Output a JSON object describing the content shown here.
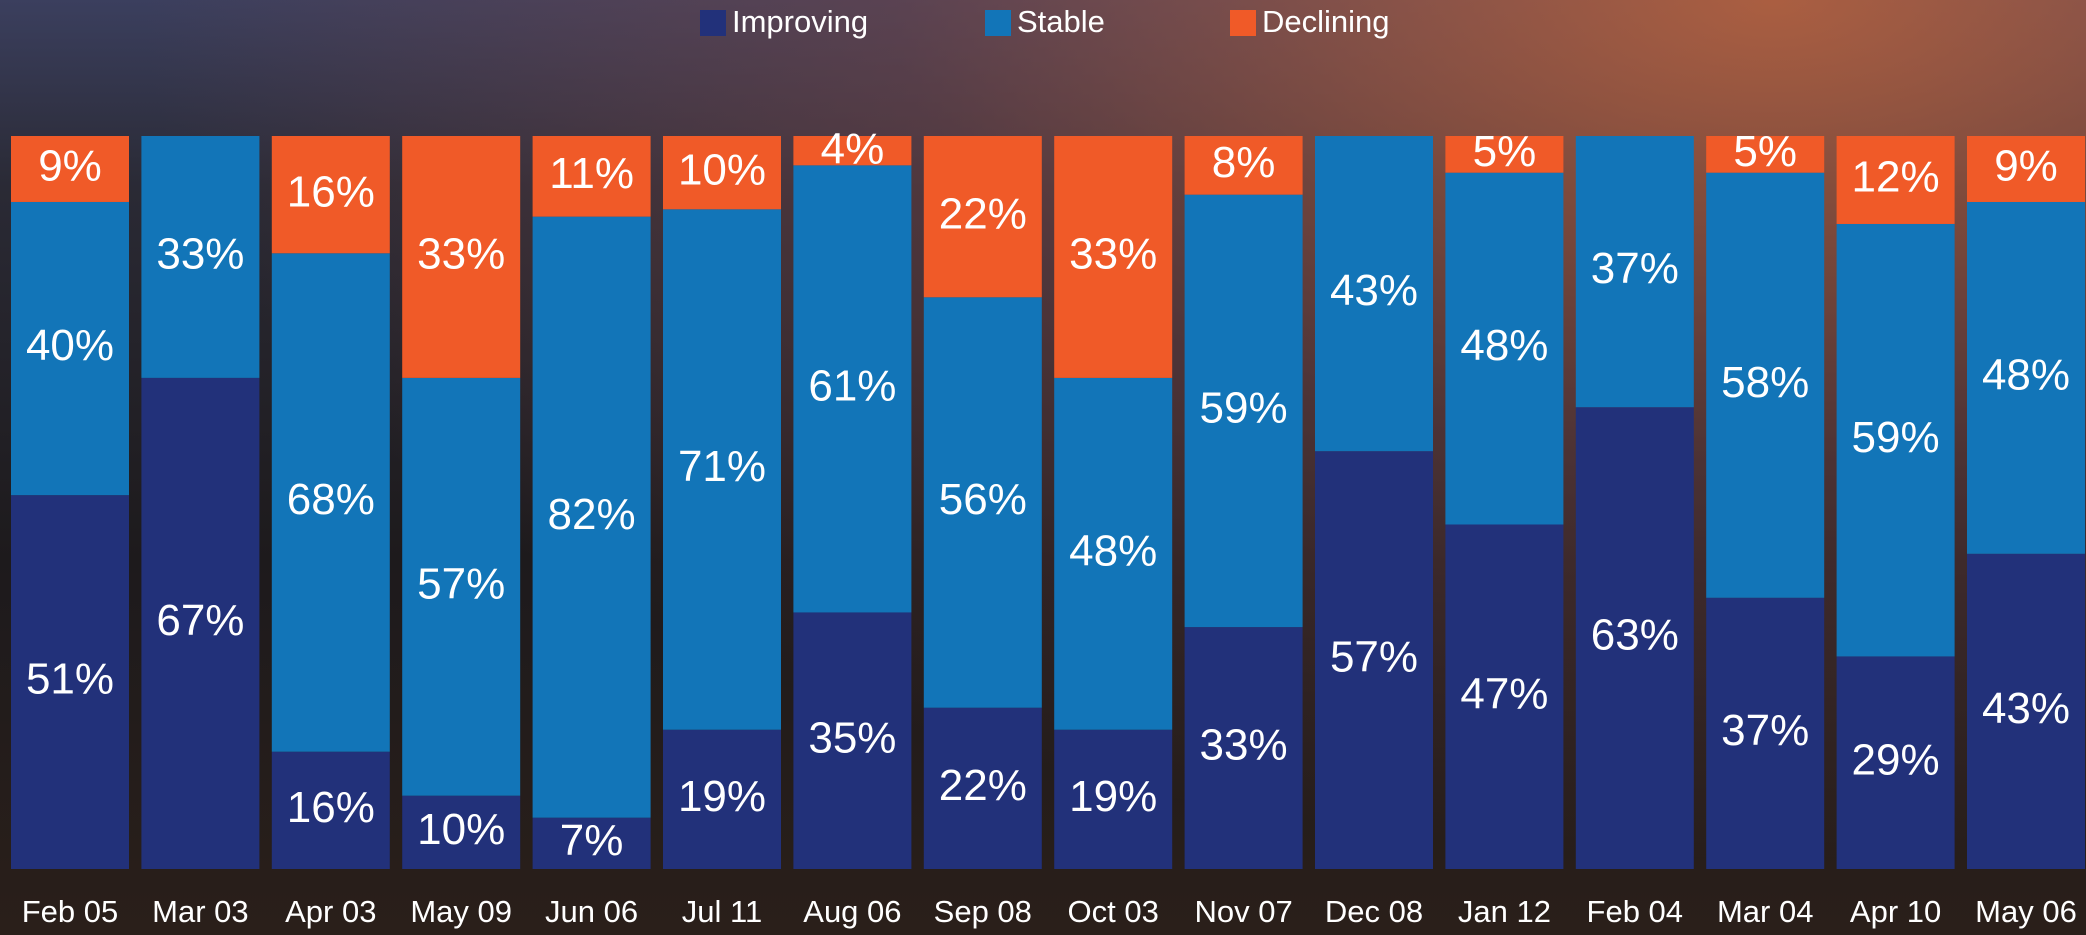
{
  "chart_data": {
    "type": "stacked_bar",
    "categories": [
      "Feb 05",
      "Mar 03",
      "Apr 03",
      "May 09",
      "Jun 06",
      "Jul 11",
      "Aug 06",
      "Sep 08",
      "Oct 03",
      "Nov 07",
      "Dec 08",
      "Jan 12",
      "Feb 04",
      "Mar 04",
      "Apr 10",
      "May 06"
    ],
    "ylim": [
      0,
      100
    ],
    "legend": "top",
    "series": [
      {
        "name": "Improving",
        "color": "#22317a",
        "values": [
          51,
          67,
          16,
          10,
          7,
          19,
          35,
          22,
          19,
          33,
          57,
          47,
          63,
          37,
          29,
          43
        ],
        "value_labels": [
          "51%",
          "67%",
          "16%",
          "10%",
          "7%",
          "19%",
          "35%",
          "22%",
          "19%",
          "33%",
          "57%",
          "47%",
          "63%",
          "37%",
          "29%",
          "43%"
        ]
      },
      {
        "name": "Stable",
        "color": "#1275b8",
        "values": [
          40,
          33,
          68,
          57,
          82,
          71,
          61,
          56,
          48,
          59,
          43,
          48,
          37,
          58,
          59,
          48
        ],
        "value_labels": [
          "40%",
          "33%",
          "68%",
          "57%",
          "82%",
          "71%",
          "61%",
          "56%",
          "48%",
          "59%",
          "43%",
          "48%",
          "37%",
          "58%",
          "59%",
          "48%"
        ]
      },
      {
        "name": "Declining",
        "color": "#f05a28",
        "values": [
          9,
          null,
          16,
          33,
          11,
          10,
          4,
          22,
          33,
          8,
          null,
          5,
          null,
          5,
          12,
          9
        ],
        "value_labels": [
          "9%",
          null,
          "16%",
          "33%",
          "11%",
          "10%",
          "4%",
          "22%",
          "33%",
          "8%",
          null,
          "5%",
          null,
          "5%",
          "12%",
          "9%"
        ]
      }
    ]
  }
}
